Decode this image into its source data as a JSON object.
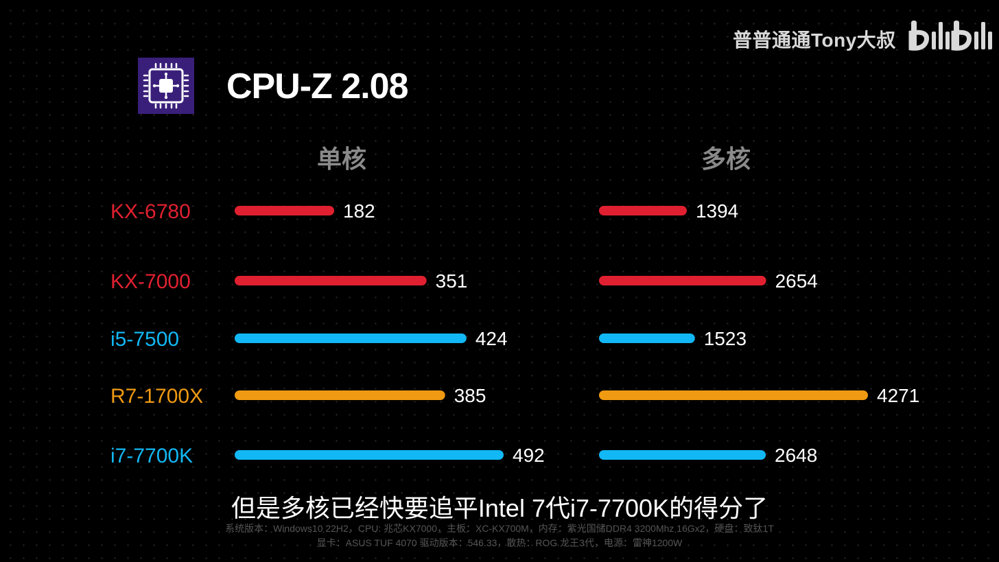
{
  "watermark": {
    "author": "普普通通Tony大叔",
    "logo": "bilibili"
  },
  "app_icon": "cpu-z-icon",
  "title": "CPU-Z 2.08",
  "headers": {
    "single": "单核",
    "multi": "多核"
  },
  "subtitle": "但是多核已经快要追平Intel 7代i7-7700K的得分了",
  "footnotes": [
    "系统版本：Windows10 22H2，CPU: 兆芯KX7000，主板：XC-KX700M，内存：紫光国储DDR4 3200Mhz 16Gx2，硬盘：致钛1T",
    "显卡：ASUS TUF 4070 驱动版本：546.33，散热：ROG 龙王3代，电源：雷神1200W"
  ],
  "colors": {
    "red": "#e02030",
    "blue": "#12b8f5",
    "orange": "#f09a12"
  },
  "chart_data": {
    "type": "bar",
    "orientation": "horizontal",
    "categories": [
      "KX-6780",
      "KX-7000",
      "i5-7500",
      "R7-1700X",
      "i7-7700K"
    ],
    "category_colors": [
      "red",
      "red",
      "blue",
      "orange",
      "blue"
    ],
    "series": [
      {
        "name": "单核",
        "values": [
          182,
          351,
          424,
          385,
          492
        ]
      },
      {
        "name": "多核",
        "values": [
          1394,
          2654,
          1523,
          4271,
          2648
        ]
      }
    ]
  }
}
